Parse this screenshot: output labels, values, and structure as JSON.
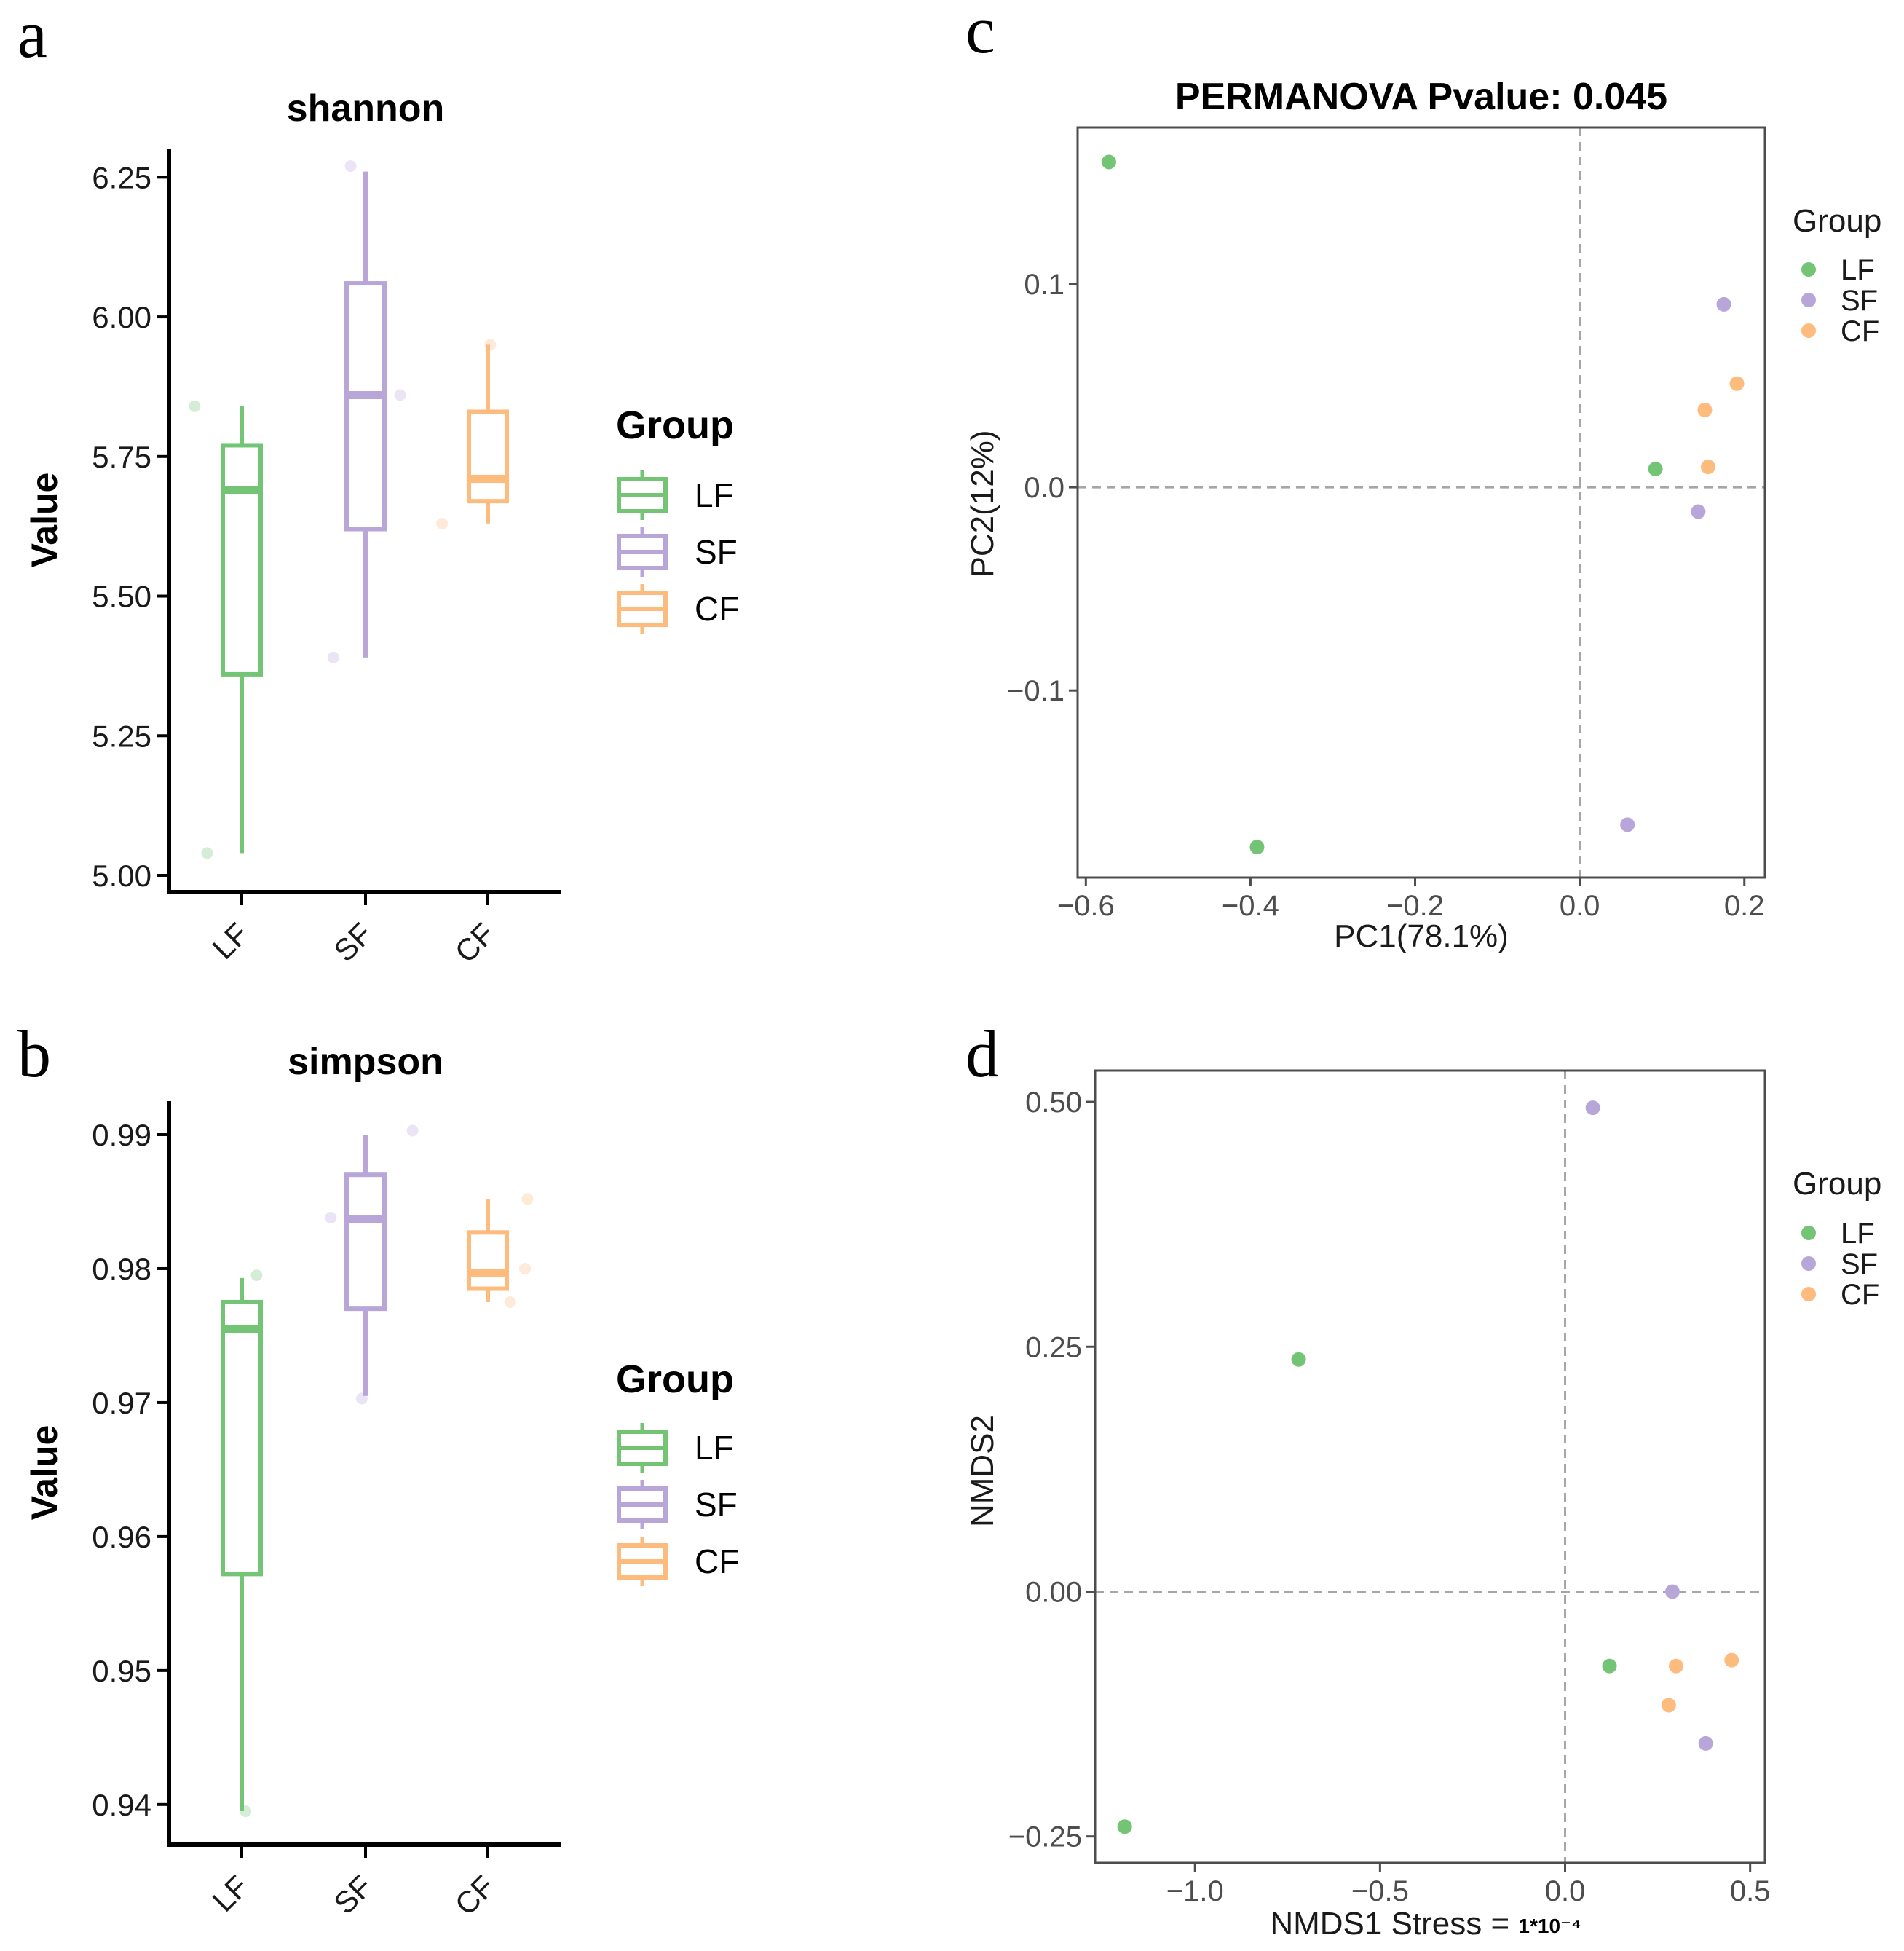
{
  "colors": {
    "LF": "#74c476",
    "SF": "#b8a6d9",
    "CF": "#fdbb7e",
    "axis": "#000000",
    "grid": "#a6a6a6",
    "frame": "#4d4d4d"
  },
  "chart_data": [
    {
      "id": "a",
      "panel_letter": "a",
      "type": "box",
      "title": "shannon",
      "ylabel": "Value",
      "categories": [
        "LF",
        "SF",
        "CF"
      ],
      "ylim": [
        4.97,
        6.3
      ],
      "yticks": [
        5.0,
        5.25,
        5.5,
        5.75,
        6.0,
        6.25
      ],
      "ytick_labels": [
        "5.00",
        "5.25",
        "5.50",
        "5.75",
        "6.00",
        "6.25"
      ],
      "boxes": [
        {
          "group": "LF",
          "min": 5.04,
          "q1": 5.36,
          "median": 5.69,
          "q3": 5.77,
          "max": 5.84
        },
        {
          "group": "SF",
          "min": 5.39,
          "q1": 5.62,
          "median": 5.86,
          "q3": 6.06,
          "max": 6.26
        },
        {
          "group": "CF",
          "min": 5.63,
          "q1": 5.67,
          "median": 5.71,
          "q3": 5.83,
          "max": 5.95
        }
      ],
      "points": [
        {
          "group": "LF",
          "value": 5.84,
          "jitter": -0.38
        },
        {
          "group": "LF",
          "value": 5.04,
          "jitter": -0.28
        },
        {
          "group": "SF",
          "value": 6.27,
          "jitter": -0.12
        },
        {
          "group": "SF",
          "value": 5.39,
          "jitter": -0.26
        },
        {
          "group": "SF",
          "value": 5.86,
          "jitter": 0.28
        },
        {
          "group": "CF",
          "value": 5.95,
          "jitter": 0.02
        },
        {
          "group": "CF",
          "value": 5.63,
          "jitter": -0.37
        }
      ],
      "legend": {
        "title": "Group",
        "items": [
          "LF",
          "SF",
          "CF"
        ]
      }
    },
    {
      "id": "b",
      "panel_letter": "b",
      "type": "box",
      "title": "simpson",
      "ylabel": "Value",
      "categories": [
        "LF",
        "SF",
        "CF"
      ],
      "ylim": [
        0.937,
        0.9925
      ],
      "yticks": [
        0.94,
        0.95,
        0.96,
        0.97,
        0.98,
        0.99
      ],
      "ytick_labels": [
        "0.94",
        "0.95",
        "0.96",
        "0.97",
        "0.98",
        "0.99"
      ],
      "boxes": [
        {
          "group": "LF",
          "min": 0.9395,
          "q1": 0.9572,
          "median": 0.9755,
          "q3": 0.9775,
          "max": 0.9793
        },
        {
          "group": "SF",
          "min": 0.9705,
          "q1": 0.977,
          "median": 0.9837,
          "q3": 0.987,
          "max": 0.99
        },
        {
          "group": "CF",
          "min": 0.9775,
          "q1": 0.9785,
          "median": 0.9797,
          "q3": 0.9827,
          "max": 0.9852
        }
      ],
      "points": [
        {
          "group": "LF",
          "value": 0.9795,
          "jitter": 0.12
        },
        {
          "group": "LF",
          "value": 0.9395,
          "jitter": 0.03
        },
        {
          "group": "SF",
          "value": 0.9838,
          "jitter": -0.28
        },
        {
          "group": "SF",
          "value": 0.9703,
          "jitter": -0.03
        },
        {
          "group": "SF",
          "value": 0.9903,
          "jitter": 0.38
        },
        {
          "group": "CF",
          "value": 0.9852,
          "jitter": 0.32
        },
        {
          "group": "CF",
          "value": 0.98,
          "jitter": 0.3
        },
        {
          "group": "CF",
          "value": 0.9775,
          "jitter": 0.18
        }
      ],
      "legend": {
        "title": "Group",
        "items": [
          "LF",
          "SF",
          "CF"
        ]
      }
    },
    {
      "id": "c",
      "panel_letter": "c",
      "type": "scatter",
      "title": "PERMANOVA Pvalue: 0.045",
      "xlabel": "PC1(78.1%)",
      "ylabel": "PC2(12%)",
      "xlim": [
        -0.61,
        0.225
      ],
      "ylim": [
        -0.192,
        0.177
      ],
      "xticks": [
        -0.6,
        -0.4,
        -0.2,
        0.0,
        0.2
      ],
      "xtick_labels": [
        "−0.6",
        "−0.4",
        "−0.2",
        "0.0",
        "0.2"
      ],
      "yticks": [
        -0.1,
        0.0,
        0.1
      ],
      "ytick_labels": [
        "−0.1",
        "0.0",
        "0.1"
      ],
      "points": [
        {
          "group": "LF",
          "x": -0.572,
          "y": 0.16
        },
        {
          "group": "LF",
          "x": -0.392,
          "y": -0.177
        },
        {
          "group": "LF",
          "x": 0.092,
          "y": 0.009
        },
        {
          "group": "SF",
          "x": 0.175,
          "y": 0.09
        },
        {
          "group": "SF",
          "x": 0.144,
          "y": -0.012
        },
        {
          "group": "SF",
          "x": 0.058,
          "y": -0.166
        },
        {
          "group": "CF",
          "x": 0.191,
          "y": 0.051
        },
        {
          "group": "CF",
          "x": 0.152,
          "y": 0.038
        },
        {
          "group": "CF",
          "x": 0.156,
          "y": 0.01
        }
      ],
      "legend": {
        "title": "Group",
        "items": [
          "LF",
          "SF",
          "CF"
        ]
      }
    },
    {
      "id": "d",
      "panel_letter": "d",
      "type": "scatter",
      "title": "",
      "xlabel": "NMDS1  Stress = ",
      "xlabel_suffix": "1*10⁻⁴",
      "ylabel": "NMDS2",
      "xlim": [
        -1.27,
        0.54
      ],
      "ylim": [
        -0.277,
        0.532
      ],
      "xticks": [
        -1.0,
        -0.5,
        0.0,
        0.5
      ],
      "xtick_labels": [
        "−1.0",
        "−0.5",
        "0.0",
        "0.5"
      ],
      "yticks": [
        -0.25,
        0.0,
        0.25,
        0.5
      ],
      "ytick_labels": [
        "−0.25",
        "0.00",
        "0.25",
        "0.50"
      ],
      "points": [
        {
          "group": "LF",
          "x": -0.72,
          "y": 0.237
        },
        {
          "group": "LF",
          "x": -1.19,
          "y": -0.24
        },
        {
          "group": "LF",
          "x": 0.12,
          "y": -0.076
        },
        {
          "group": "SF",
          "x": 0.075,
          "y": 0.494
        },
        {
          "group": "SF",
          "x": 0.29,
          "y": 0.0
        },
        {
          "group": "SF",
          "x": 0.38,
          "y": -0.155
        },
        {
          "group": "CF",
          "x": 0.3,
          "y": -0.076
        },
        {
          "group": "CF",
          "x": 0.45,
          "y": -0.07
        },
        {
          "group": "CF",
          "x": 0.28,
          "y": -0.116
        }
      ],
      "legend": {
        "title": "Group",
        "items": [
          "LF",
          "SF",
          "CF"
        ]
      }
    }
  ]
}
